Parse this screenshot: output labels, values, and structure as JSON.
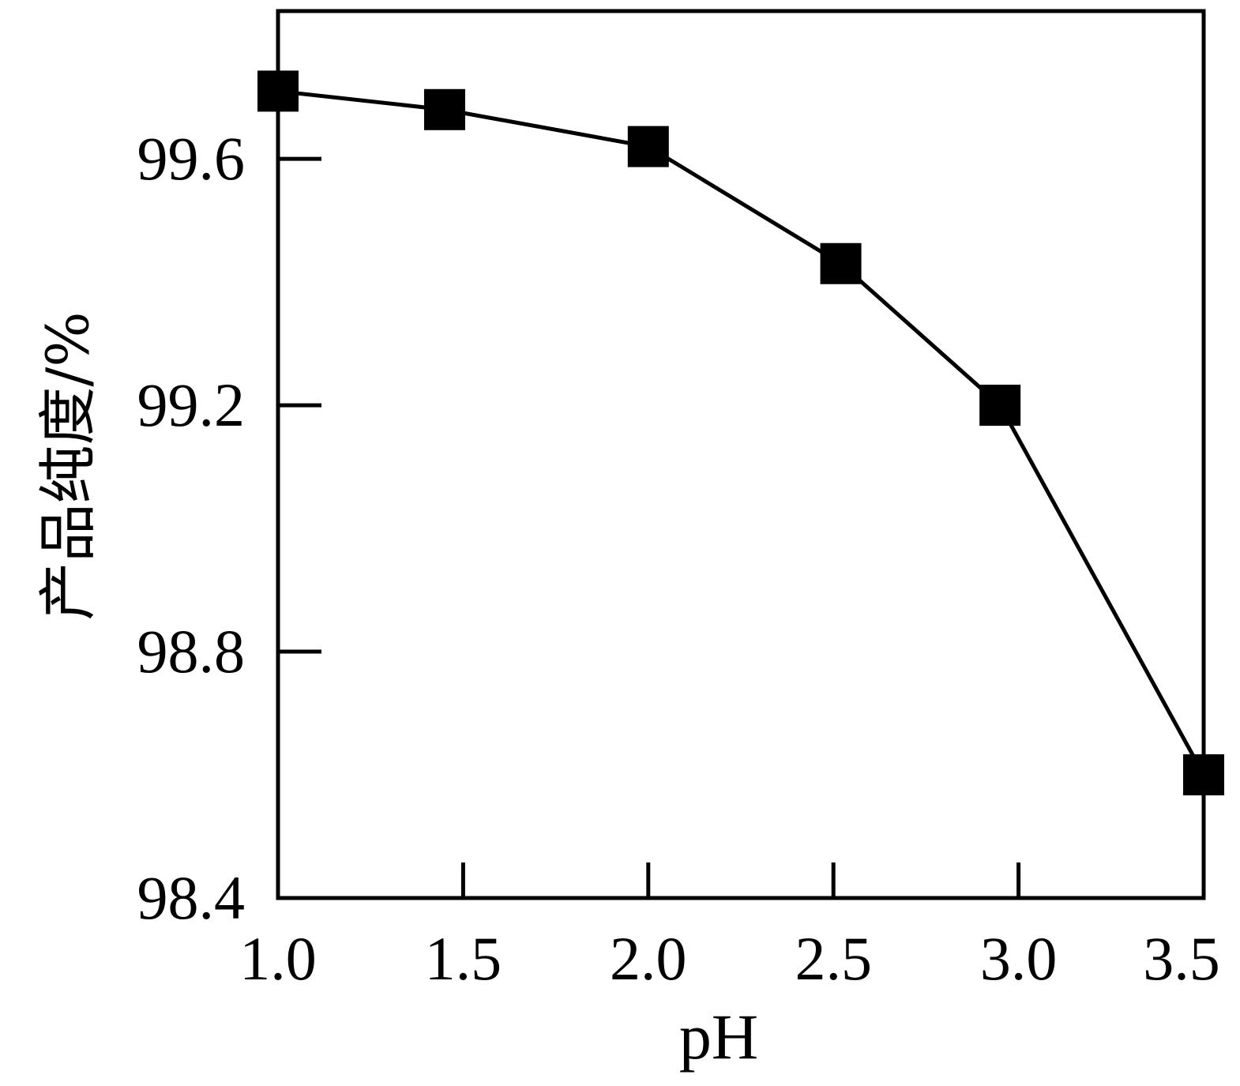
{
  "chart_data": {
    "type": "line",
    "title": "",
    "xlabel": "pH",
    "ylabel": "产品纯度/%",
    "xlim": [
      1.0,
      3.5
    ],
    "ylim": [
      98.4,
      99.84
    ],
    "xticks": [
      1.0,
      1.5,
      2.0,
      2.5,
      3.0,
      3.5
    ],
    "xtick_labels": [
      "1.0",
      "1.5",
      "2.0",
      "2.5",
      "3.0",
      "3.5"
    ],
    "yticks": [
      98.4,
      98.8,
      99.2,
      99.6
    ],
    "ytick_labels": [
      "98.4",
      "98.8",
      "99.2",
      "99.6"
    ],
    "grid": false,
    "marker": "square",
    "color": "#000000",
    "series": [
      {
        "x": [
          1.0,
          1.45,
          2.0,
          2.52,
          2.95,
          3.5
        ],
        "y": [
          99.71,
          99.68,
          99.62,
          99.43,
          99.2,
          98.6
        ]
      }
    ]
  }
}
